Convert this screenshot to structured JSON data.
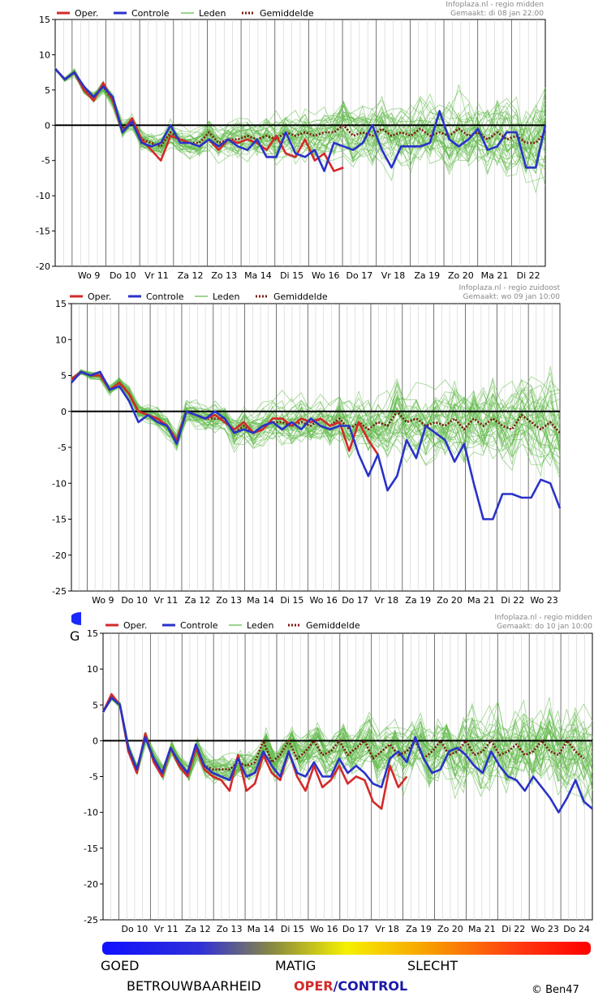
{
  "legend": {
    "oper": "Oper.",
    "controle": "Controle",
    "leden": "Leden",
    "gemiddelde": "Gemiddelde"
  },
  "colors": {
    "oper": "#d42a2a",
    "controle": "#2a32c8",
    "leden": "#5cb845",
    "gemiddelde": "#7a1a10",
    "zero": "#000000"
  },
  "chart_data": [
    {
      "type": "line",
      "source": "Infoplaza.nl - regio midden",
      "made": "Gemaakt: di 08 jan 22:00",
      "ylim": [
        -20,
        15
      ],
      "yticks": [
        15,
        10,
        5,
        0,
        -5,
        -10,
        -15,
        -20
      ],
      "day_labels": [
        "Wo 9",
        "Do 10",
        "Vr 11",
        "Za 12",
        "Zo 13",
        "Ma 14",
        "Di 15",
        "Wo 16",
        "Do 17",
        "Vr 18",
        "Za 19",
        "Zo 20",
        "Ma 21",
        "Di 22"
      ],
      "series": [
        {
          "name": "Oper.",
          "values": [
            8,
            6.5,
            7.5,
            5,
            3.5,
            6,
            3.5,
            -1,
            1,
            -2,
            -3.5,
            -5,
            -1.5,
            -2,
            -2.5,
            -3,
            -2,
            -3.5,
            -2,
            -2.5,
            -2,
            -2.5,
            -3.5,
            -1.5,
            -4,
            -4.5,
            -2,
            -5,
            -4,
            -6.5,
            -6
          ]
        },
        {
          "name": "Controle",
          "values": [
            8,
            6.5,
            7.5,
            5.5,
            4,
            5.5,
            4,
            -1,
            0.5,
            -2.5,
            -3,
            -2.5,
            0,
            -2.5,
            -2.5,
            -3,
            -2,
            -3,
            -2,
            -3,
            -3.5,
            -2,
            -4.5,
            -4.5,
            -1,
            -4,
            -4.5,
            -3.5,
            -6.5,
            -2.5,
            -3,
            -3.5,
            -2.5,
            0,
            -3.5,
            -6,
            -3,
            -3,
            -3,
            -2.5,
            2,
            -2,
            -3,
            -2,
            -0.5,
            -3.5,
            -3,
            -1,
            -1,
            -6,
            -6,
            0
          ]
        },
        {
          "name": "Gemiddelde",
          "values": [
            8,
            6.5,
            7.5,
            5,
            4,
            5.5,
            3.5,
            -0.5,
            0.5,
            -2,
            -2.5,
            -3,
            -1,
            -2,
            -2.5,
            -2.5,
            -1,
            -2.5,
            -2,
            -2,
            -1.5,
            -2,
            -1.5,
            -2,
            -1,
            -1.5,
            -1,
            -1.5,
            -1,
            -1,
            0,
            -1.5,
            -1,
            -1.5,
            -0.5,
            -1.5,
            -1,
            -1.5,
            -0.5,
            -1.5,
            -1,
            -1.5,
            -0.5,
            -1.5,
            -1,
            -2,
            -1,
            -2,
            -1.5,
            -2.5,
            -2.5,
            -1
          ]
        }
      ]
    },
    {
      "type": "line",
      "source": "Infoplaza.nl - regio zuidoost",
      "made": "Gemaakt: wo 09 jan 10:00",
      "ylim": [
        -25,
        15
      ],
      "yticks": [
        15,
        10,
        5,
        0,
        -5,
        -10,
        -15,
        -20,
        -25
      ],
      "day_labels": [
        "Wo 9",
        "Do 10",
        "Vr 11",
        "Za 12",
        "Zo 13",
        "Ma 14",
        "Di 15",
        "Wo 16",
        "Do 17",
        "Vr 18",
        "Za 19",
        "Zo 20",
        "Ma 21",
        "Di 22",
        "Wo 23"
      ],
      "series": [
        {
          "name": "Oper.",
          "values": [
            4.5,
            5.5,
            5,
            5,
            3,
            4,
            2.5,
            0,
            -0.5,
            -1,
            -2,
            -4,
            0,
            -0.5,
            -1,
            -0.5,
            -1.5,
            -2.5,
            -1.5,
            -3,
            -2.5,
            -1,
            -1,
            -2,
            -1,
            -1.5,
            -1,
            -2,
            -1.5,
            -5.5,
            -1.5,
            -4,
            -6
          ]
        },
        {
          "name": "Controle",
          "values": [
            4,
            5.5,
            5,
            5.5,
            3,
            3.5,
            1.5,
            -1.5,
            -0.5,
            -1.5,
            -2,
            -4.5,
            0,
            -0.5,
            -1,
            0,
            -1,
            -3,
            -2.5,
            -3,
            -2,
            -1.5,
            -2.5,
            -1.5,
            -2.5,
            -1,
            -2,
            -2.5,
            -2,
            -2,
            -6,
            -9,
            -6,
            -11,
            -9,
            -4,
            -6.5,
            -2,
            -3,
            -4,
            -7,
            -4.5,
            -10,
            -15,
            -15,
            -11.5,
            -11.5,
            -12,
            -12,
            -9.5,
            -10,
            -13.5
          ]
        },
        {
          "name": "Gemiddelde",
          "values": [
            4.5,
            5.5,
            5,
            5,
            3,
            4,
            2.5,
            0,
            -0.5,
            -1,
            -2,
            -4,
            0,
            -0.5,
            -1,
            -1,
            -1,
            -3,
            -2,
            -3,
            -2,
            -1.5,
            -1.5,
            -2,
            -1.5,
            -2,
            -1,
            -2,
            -1,
            -2.5,
            -1.5,
            -2.5,
            -1.5,
            -2,
            0,
            -1.5,
            -1,
            -2,
            -1.5,
            -2,
            -1,
            -2.5,
            -1,
            -2,
            -1,
            -2,
            -2.5,
            -0.5,
            -1.5,
            -2.5,
            -1.5,
            -3
          ]
        }
      ]
    },
    {
      "type": "line",
      "source": "Infoplaza.nl - regio midden",
      "made": "Gemaakt: do 10 jan 10:00",
      "ylim": [
        -25,
        15
      ],
      "yticks": [
        15,
        10,
        5,
        0,
        -5,
        -10,
        -15,
        -20,
        -25
      ],
      "day_labels": [
        "Do 10",
        "Vr 11",
        "Za 12",
        "Zo 13",
        "Ma 14",
        "Di 15",
        "Wo 16",
        "Do 17",
        "Vr 18",
        "Za 19",
        "Zo 20",
        "Ma 21",
        "Di 22",
        "Wo 23",
        "Do 24"
      ],
      "series": [
        {
          "name": "Oper.",
          "values": [
            4,
            6.5,
            5,
            -1.5,
            -4.5,
            1,
            -3,
            -5,
            -1,
            -3.5,
            -5,
            -1,
            -4,
            -5,
            -5.5,
            -7,
            -2,
            -7,
            -6,
            -2,
            -4.5,
            -5.5,
            -1.5,
            -5,
            -7,
            -3.5,
            -6.5,
            -5.5,
            -3.5,
            -6,
            -5,
            -5.5,
            -8.5,
            -9.5,
            -3.5,
            -6.5,
            -5
          ]
        },
        {
          "name": "Controle",
          "values": [
            4,
            6,
            5,
            -1,
            -4,
            0.5,
            -2.5,
            -4.5,
            -1,
            -3,
            -4.5,
            -0.5,
            -3.5,
            -4.5,
            -5,
            -5.5,
            -2.5,
            -5,
            -4.5,
            -1.5,
            -3.5,
            -5,
            -1.5,
            -4.5,
            -5,
            -3,
            -5,
            -5,
            -2.5,
            -4.5,
            -3.5,
            -4.5,
            -6,
            -6.5,
            -2.5,
            -1.5,
            -3,
            0.5,
            -2.5,
            -4.5,
            -4,
            -1.5,
            -1,
            -2,
            -3.5,
            -4.5,
            -1.5,
            -3.5,
            -5,
            -5.5,
            -7,
            -5,
            -6.5,
            -8,
            -10,
            -8,
            -5.5,
            -8.5,
            -9.5
          ]
        },
        {
          "name": "Gemiddelde",
          "values": [
            4,
            6,
            5,
            -1,
            -4,
            0.5,
            -2.5,
            -4.5,
            -1,
            -3,
            -4.5,
            -1,
            -3.5,
            -4,
            -4,
            -4,
            -3,
            -3.5,
            -3,
            0,
            -3,
            -2,
            0,
            -2.5,
            -1.5,
            0,
            -2,
            -1.5,
            0,
            -2,
            -1,
            0,
            -2.5,
            -1.5,
            -0.5,
            -2,
            -1.5,
            0,
            -2.5,
            -1.5,
            0,
            -2,
            -1.5,
            0,
            -2,
            -1.5,
            0,
            -2,
            -1.5,
            -0.5,
            -2,
            -1.5,
            0,
            -1.5,
            -2,
            0,
            -1.5,
            -2.5
          ]
        }
      ]
    }
  ],
  "footer": {
    "goed": "GOED",
    "matig": "MATIG",
    "slecht": "SLECHT",
    "betrouwbaarheid": "BETROUWBAARHEID",
    "oper": "OPER",
    "slash": "/",
    "control": "CONTROL",
    "credit": "© Ben47"
  },
  "fragment": {
    "letter": "G"
  }
}
